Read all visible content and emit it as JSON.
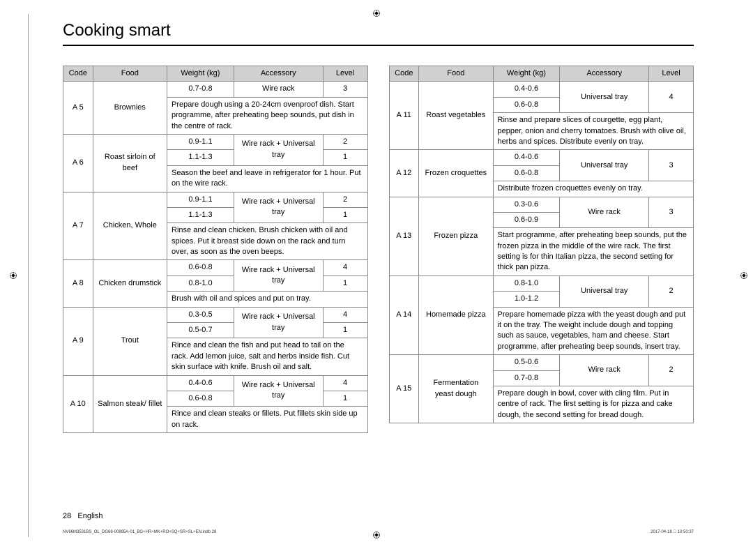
{
  "title": "Cooking smart",
  "headers": {
    "code": "Code",
    "food": "Food",
    "weight": "Weight (kg)",
    "accessory": "Accessory",
    "level": "Level"
  },
  "footer": {
    "page": "28",
    "lang": "English",
    "left": "NV66M3531BS_OL_DG68-00895A-01_BG+HR+MK+RO+SQ+SR+SL+EN.indb   28",
    "right": "2017-04-18   􀀀 10:50:37"
  },
  "left_rows": [
    {
      "code": "A 5",
      "food": "Brownies",
      "food_rowspan": 2,
      "weights": [
        "0.7-0.8"
      ],
      "accessory": "Wire rack",
      "acc_rowspan": 1,
      "levels": [
        "3"
      ],
      "instr": "Prepare dough using a 20-24cm ovenproof dish. Start programme, after preheating beep sounds, put dish in the centre of rack."
    },
    {
      "code": "A 6",
      "food": "Roast sirloin of beef",
      "food_rowspan": 3,
      "weights": [
        "0.9-1.1",
        "1.1-1.3"
      ],
      "accessory": "Wire rack + Universal tray",
      "acc_rowspan": 2,
      "levels": [
        "2",
        "1"
      ],
      "instr": "Season the beef and leave in refrigerator for 1 hour. Put on the wire rack."
    },
    {
      "code": "A 7",
      "food": "Chicken, Whole",
      "food_rowspan": 3,
      "weights": [
        "0.9-1.1",
        "1.1-1.3"
      ],
      "accessory": "Wire rack + Universal tray",
      "acc_rowspan": 2,
      "levels": [
        "2",
        "1"
      ],
      "instr": "Rinse and clean chicken. Brush chicken with oil and spices. Put it breast side down on the rack and turn over, as soon as the oven beeps."
    },
    {
      "code": "A 8",
      "food": "Chicken drumstick",
      "food_rowspan": 3,
      "weights": [
        "0.6-0.8",
        "0.8-1.0"
      ],
      "accessory": "Wire rack + Universal tray",
      "acc_rowspan": 2,
      "levels": [
        "4",
        "1"
      ],
      "instr": "Brush with oil and spices and put on tray."
    },
    {
      "code": "A 9",
      "food": "Trout",
      "food_rowspan": 3,
      "weights": [
        "0.3-0.5",
        "0.5-0.7"
      ],
      "accessory": "Wire rack + Universal tray",
      "acc_rowspan": 2,
      "levels": [
        "4",
        "1"
      ],
      "instr": "Rince and clean the fish and put head to tail on the rack. Add lemon juice, salt and herbs inside fish. Cut skin surface with knife. Brush oil and salt."
    },
    {
      "code": "A 10",
      "food": "Salmon steak/ fillet",
      "food_rowspan": 3,
      "weights": [
        "0.4-0.6",
        "0.6-0.8"
      ],
      "accessory": "Wire rack + Universal tray",
      "acc_rowspan": 2,
      "levels": [
        "4",
        "1"
      ],
      "instr": "Rince and clean steaks or fillets. Put fillets skin side up on rack."
    }
  ],
  "right_rows": [
    {
      "code": "A 11",
      "food": "Roast vegetables",
      "food_rowspan": 3,
      "weights": [
        "0.4-0.6",
        "0.6-0.8"
      ],
      "accessory": "Universal tray",
      "acc_rowspan": 2,
      "levels": [
        "4"
      ],
      "level_rowspan": 2,
      "instr": "Rinse and prepare slices of courgette, egg plant, pepper, onion and cherry tomatoes. Brush with olive oil, herbs and spices. Distribute evenly on tray."
    },
    {
      "code": "A 12",
      "food": "Frozen croquettes",
      "food_rowspan": 3,
      "weights": [
        "0.4-0.6",
        "0.6-0.8"
      ],
      "accessory": "Universal tray",
      "acc_rowspan": 2,
      "levels": [
        "3"
      ],
      "level_rowspan": 2,
      "instr": "Distribute frozen croquettes evenly on tray."
    },
    {
      "code": "A 13",
      "food": "Frozen pizza",
      "food_rowspan": 3,
      "weights": [
        "0.3-0.6",
        "0.6-0.9"
      ],
      "accessory": "Wire rack",
      "acc_rowspan": 2,
      "levels": [
        "3"
      ],
      "level_rowspan": 2,
      "instr": "Start programme, after preheating beep sounds, put the frozen pizza in the middle of the wire rack. The first setting is for thin Italian pizza, the second setting for thick pan pizza."
    },
    {
      "code": "A 14",
      "food": "Homemade pizza",
      "food_rowspan": 3,
      "weights": [
        "0.8-1.0",
        "1.0-1.2"
      ],
      "accessory": "Universal tray",
      "acc_rowspan": 2,
      "levels": [
        "2"
      ],
      "level_rowspan": 2,
      "instr": "Prepare homemade pizza with the yeast dough and put it on the tray. The weight include dough and topping such as sauce, vegetables, ham and cheese. Start programme, after preheating beep sounds, insert tray."
    },
    {
      "code": "A 15",
      "food": "Fermentation yeast dough",
      "food_rowspan": 3,
      "weights": [
        "0.5-0.6",
        "0.7-0.8"
      ],
      "accessory": "Wire rack",
      "acc_rowspan": 2,
      "levels": [
        "2"
      ],
      "level_rowspan": 2,
      "instr": "Prepare dough in bowl, cover with cling film. Put in centre of rack. The first setting is for pizza and cake dough, the second setting for bread dough."
    }
  ]
}
